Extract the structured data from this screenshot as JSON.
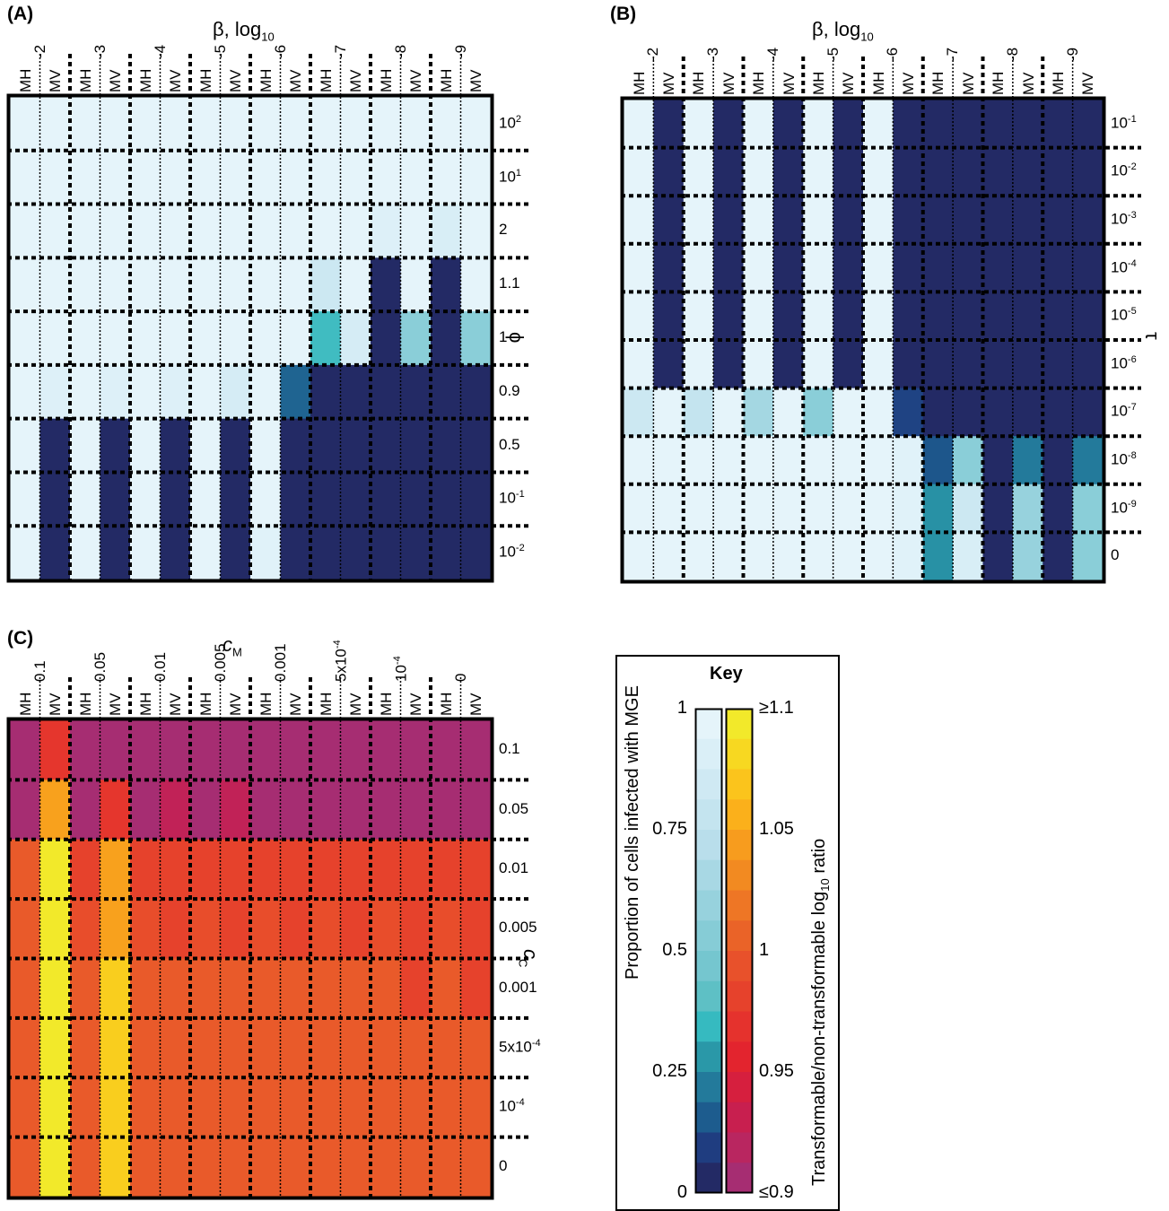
{
  "panels": [
    {
      "id": "A",
      "label": "(A)",
      "top_title": "β, log",
      "top_title_sub": "10",
      "side_title": "ϕ",
      "colormap": "blue",
      "col_types": [
        "MH",
        "MV",
        "MH",
        "MV",
        "MH",
        "MV",
        "MH",
        "MV",
        "MH",
        "MV",
        "MH",
        "MV",
        "MH",
        "MV",
        "MH",
        "MV"
      ],
      "col_values": [
        "-2",
        "-3",
        "-4",
        "-5",
        "-6",
        "-7",
        "-8",
        "-9"
      ],
      "row_labels": [
        {
          "base": "10",
          "sup": "2"
        },
        {
          "base": "10",
          "sup": "1"
        },
        {
          "base": "2",
          "sup": ""
        },
        {
          "base": "1.1",
          "sup": ""
        },
        {
          "base": "1",
          "sup": ""
        },
        {
          "base": "0.9",
          "sup": ""
        },
        {
          "base": "0.5",
          "sup": ""
        },
        {
          "base": "10",
          "sup": "-1"
        },
        {
          "base": "10",
          "sup": "-2"
        }
      ]
    },
    {
      "id": "B",
      "label": "(B)",
      "top_title": "β, log",
      "top_title_sub": "10",
      "side_title": "τ",
      "colormap": "blue",
      "col_types": [
        "MH",
        "MV",
        "MH",
        "MV",
        "MH",
        "MV",
        "MH",
        "MV",
        "MH",
        "MV",
        "MH",
        "MV",
        "MH",
        "MV",
        "MH",
        "MV"
      ],
      "col_values": [
        "-2",
        "-3",
        "-4",
        "-5",
        "-6",
        "-7",
        "-8",
        "-9"
      ],
      "row_labels": [
        {
          "base": "10",
          "sup": "-1"
        },
        {
          "base": "10",
          "sup": "-2"
        },
        {
          "base": "10",
          "sup": "-3"
        },
        {
          "base": "10",
          "sup": "-4"
        },
        {
          "base": "10",
          "sup": "-5"
        },
        {
          "base": "10",
          "sup": "-6"
        },
        {
          "base": "10",
          "sup": "-7"
        },
        {
          "base": "10",
          "sup": "-8"
        },
        {
          "base": "10",
          "sup": "-9"
        },
        {
          "base": "0",
          "sup": ""
        }
      ]
    },
    {
      "id": "C",
      "label": "(C)",
      "top_title": "c",
      "top_title_sub": "M",
      "side_title": "c",
      "side_title_sub": "C",
      "colormap": "red",
      "col_types": [
        "MH",
        "MV",
        "MH",
        "MV",
        "MH",
        "MV",
        "MH",
        "MV",
        "MH",
        "MV",
        "MH",
        "MV",
        "MH",
        "MV",
        "MH",
        "MV"
      ],
      "col_values": [
        "0.1",
        "0.05",
        "0.01",
        "0.005",
        "0.001",
        "5x10-4",
        "10-4",
        "0"
      ],
      "row_labels": [
        {
          "base": "0.1",
          "sup": ""
        },
        {
          "base": "0.05",
          "sup": ""
        },
        {
          "base": "0.01",
          "sup": ""
        },
        {
          "base": "0.005",
          "sup": ""
        },
        {
          "base": "0.001",
          "sup": ""
        },
        {
          "base": "5x10",
          "sup": "-4"
        },
        {
          "base": "10",
          "sup": "-4"
        },
        {
          "base": "0",
          "sup": ""
        }
      ]
    }
  ],
  "chart_data": [
    {
      "type": "heatmap",
      "title": "(A)",
      "xlabel": "β, log10",
      "ylabel": "ϕ",
      "x_groups": [
        "-2",
        "-3",
        "-4",
        "-5",
        "-6",
        "-7",
        "-8",
        "-9"
      ],
      "x_subcolumns": [
        "MH",
        "MV"
      ],
      "y": [
        "10^2",
        "10^1",
        "2",
        "1.1",
        "1",
        "0.9",
        "0.5",
        "10^-1",
        "10^-2"
      ],
      "value_meaning": "Proportion of cells infected with MGE",
      "values": [
        [
          1,
          1,
          1,
          1,
          1,
          1,
          1,
          1,
          1,
          1,
          1,
          1,
          1,
          1,
          1,
          1
        ],
        [
          1,
          1,
          1,
          1,
          1,
          1,
          1,
          1,
          1,
          1,
          1,
          1,
          1,
          1,
          1,
          1
        ],
        [
          1,
          1,
          1,
          1,
          1,
          1,
          1,
          1,
          1,
          1,
          1,
          1,
          0.95,
          1,
          0.92,
          1
        ],
        [
          1,
          1,
          1,
          1,
          1,
          1,
          1,
          1,
          1,
          1,
          0.85,
          1,
          0,
          1,
          0,
          1
        ],
        [
          1,
          1,
          1,
          1,
          1,
          1,
          1,
          1,
          1,
          1,
          0.35,
          0.9,
          0,
          0.55,
          0,
          0.55
        ],
        [
          1,
          0.95,
          1,
          0.95,
          1,
          0.95,
          1,
          0.9,
          1,
          0.15,
          0,
          0,
          0,
          0,
          0,
          0
        ],
        [
          1,
          0,
          1,
          0,
          1,
          0,
          1,
          0,
          1,
          0,
          0,
          0,
          0,
          0,
          0,
          0
        ],
        [
          1,
          0,
          1,
          0,
          1,
          0,
          1,
          0,
          1,
          0,
          0,
          0,
          0,
          0,
          0,
          0
        ],
        [
          1,
          0,
          1,
          0,
          1,
          0,
          1,
          0,
          0.97,
          0,
          0,
          0,
          0,
          0,
          0,
          0
        ]
      ],
      "zlim": [
        0,
        1
      ]
    },
    {
      "type": "heatmap",
      "title": "(B)",
      "xlabel": "β, log10",
      "ylabel": "τ",
      "x_groups": [
        "-2",
        "-3",
        "-4",
        "-5",
        "-6",
        "-7",
        "-8",
        "-9"
      ],
      "x_subcolumns": [
        "MH",
        "MV"
      ],
      "y": [
        "10^-1",
        "10^-2",
        "10^-3",
        "10^-4",
        "10^-5",
        "10^-6",
        "10^-7",
        "10^-8",
        "10^-9",
        "0"
      ],
      "value_meaning": "Proportion of cells infected with MGE",
      "values": [
        [
          1,
          0,
          1,
          0,
          1,
          0,
          1,
          0,
          1,
          0,
          0,
          0,
          0,
          0,
          0,
          0
        ],
        [
          1,
          0,
          1,
          0,
          1,
          0,
          1,
          0,
          1,
          0,
          0,
          0,
          0,
          0,
          0,
          0
        ],
        [
          1,
          0,
          1,
          0,
          1,
          0,
          1,
          0,
          1,
          0,
          0,
          0,
          0,
          0,
          0,
          0
        ],
        [
          1,
          0,
          1,
          0,
          1,
          0,
          1,
          0,
          1,
          0,
          0,
          0,
          0,
          0,
          0,
          0
        ],
        [
          1,
          0,
          1,
          0,
          1,
          0,
          1,
          0,
          1,
          0,
          0,
          0,
          0,
          0,
          0,
          0
        ],
        [
          1,
          0,
          1,
          0,
          1,
          0,
          1,
          0,
          1,
          0,
          0,
          0,
          0,
          0,
          0,
          0
        ],
        [
          0.85,
          1,
          0.8,
          1,
          0.65,
          1,
          0.55,
          1,
          1,
          0.08,
          0,
          0,
          0,
          0,
          0,
          0
        ],
        [
          1,
          1,
          1,
          1,
          1,
          1,
          1,
          1,
          1,
          0.97,
          0.12,
          0.55,
          0,
          0.2,
          0,
          0.2
        ],
        [
          1,
          1,
          1,
          1,
          1,
          1,
          1,
          1,
          1,
          0.97,
          0.25,
          0.85,
          0,
          0.6,
          0,
          0.55
        ],
        [
          1,
          1,
          1,
          1,
          1,
          1,
          1,
          1,
          1,
          0.97,
          0.25,
          0.92,
          0,
          0.6,
          0,
          0.55
        ]
      ],
      "zlim": [
        0,
        1
      ]
    },
    {
      "type": "heatmap",
      "title": "(C)",
      "xlabel": "cM",
      "ylabel": "cC",
      "x_groups": [
        "0.1",
        "0.05",
        "0.01",
        "0.005",
        "0.001",
        "5x10^-4",
        "10^-4",
        "0"
      ],
      "x_subcolumns": [
        "MH",
        "MV"
      ],
      "y": [
        "0.1",
        "0.05",
        "0.01",
        "0.005",
        "0.001",
        "5x10^-4",
        "10^-4",
        "0"
      ],
      "value_meaning": "Transformable/non-transformable log10 ratio",
      "values": [
        [
          0.85,
          0.97,
          0.85,
          0.88,
          0.85,
          0.85,
          0.85,
          0.85,
          0.85,
          0.85,
          0.85,
          0.85,
          0.85,
          0.85,
          0.85,
          0.85
        ],
        [
          0.88,
          1.05,
          0.88,
          0.97,
          0.88,
          0.92,
          0.88,
          0.92,
          0.88,
          0.88,
          0.88,
          0.88,
          0.88,
          0.88,
          0.88,
          0.88
        ],
        [
          1,
          1.1,
          0.98,
          1.05,
          0.98,
          0.98,
          0.98,
          0.98,
          0.98,
          0.98,
          0.98,
          0.98,
          0.98,
          0.98,
          0.98,
          0.98
        ],
        [
          1,
          1.1,
          0.99,
          1.05,
          0.99,
          0.98,
          0.99,
          0.98,
          0.99,
          0.98,
          0.99,
          0.98,
          0.99,
          0.98,
          0.99,
          0.98
        ],
        [
          1,
          1.1,
          1,
          1.08,
          1,
          1,
          1,
          1,
          1,
          1,
          1,
          1,
          1,
          0.98,
          1,
          0.98
        ],
        [
          1,
          1.1,
          1,
          1.08,
          1,
          1,
          1,
          1,
          1,
          1,
          1,
          1,
          1,
          1,
          1,
          1
        ],
        [
          1,
          1.1,
          1,
          1.08,
          1,
          1,
          1,
          1,
          1,
          1,
          1,
          1,
          1,
          1,
          1,
          1
        ],
        [
          1,
          1.1,
          1,
          1.08,
          1,
          1,
          1,
          1,
          1,
          1,
          1,
          1,
          1,
          1,
          1,
          1
        ]
      ],
      "zlim": [
        0.9,
        1.1
      ]
    }
  ],
  "key": {
    "title": "Key",
    "left_label": "Proportion of cells infected with MGE",
    "right_label_pre": "Transformable/non-transformable log",
    "right_label_sub": "10",
    "right_label_post": " ratio",
    "left_ticks": [
      "1",
      "0.75",
      "0.5",
      "0.25",
      "0"
    ],
    "right_ticks": [
      "≥1.1",
      "1.05",
      "1",
      "0.95",
      "≤0.9"
    ],
    "blue_colors": [
      "#e5f4fa",
      "#daeff7",
      "#cfe9f3",
      "#c4e4ef",
      "#b9deeb",
      "#a8d8e4",
      "#97d2dd",
      "#86ccd6",
      "#75c6cf",
      "#5ec0c5",
      "#36bac0",
      "#2a98a8",
      "#237a9b",
      "#1d5c8e",
      "#1f3d80",
      "#232a65"
    ],
    "red_colors": [
      "#f2e92a",
      "#f7d821",
      "#fbc41c",
      "#fbb01b",
      "#f79c1e",
      "#f28a21",
      "#ee7625",
      "#ea6328",
      "#e8512b",
      "#e6422c",
      "#e5322d",
      "#e3242e",
      "#d61f3e",
      "#c81f4f",
      "#b92660",
      "#a62d72"
    ]
  }
}
